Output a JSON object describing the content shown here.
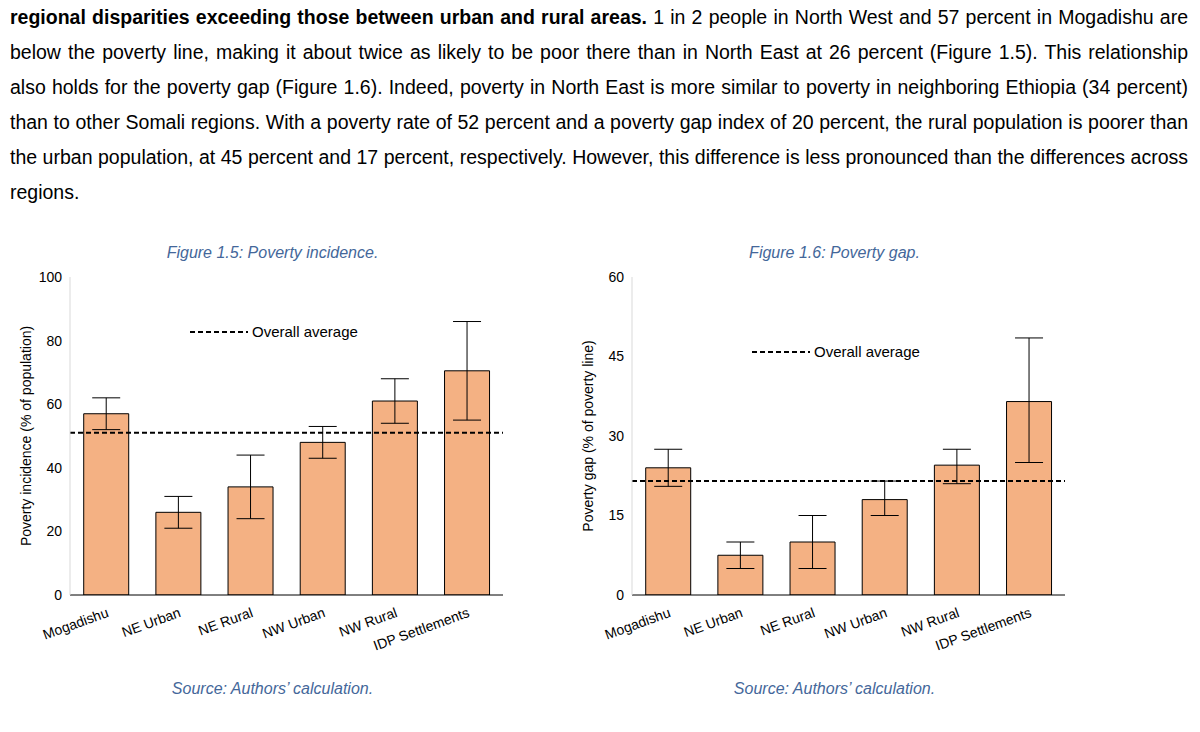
{
  "paragraph": {
    "bold": "regional disparities exceeding those between urban and rural areas.",
    "text": "1 in 2 people in North West and 57 percent in Mogadishu are below the poverty line, making it about twice as likely to be poor there than in North East at 26 percent (Figure 1.5). This relationship also holds for the poverty gap (Figure 1.6). Indeed, poverty in North East is more similar to poverty in neighboring Ethiopia (34 percent) than to other Somali regions. With a poverty rate of 52 percent and a poverty gap index of 20 percent, the rural population is poorer than the urban population, at 45 percent and 17 percent, respectively. However, this difference is less pronounced than the differences across regions."
  },
  "chart_data": [
    {
      "type": "bar",
      "title": "Figure 1.5: Poverty incidence.",
      "y_label": "Poverty incidence (% of population)",
      "source": "Source: Authors’ calculation.",
      "categories": [
        "Mogadishu",
        "NE Urban",
        "NE Rural",
        "NW Urban",
        "NW Rural",
        "IDP Settlements"
      ],
      "values": [
        57,
        26,
        34,
        48,
        61,
        70.5
      ],
      "error": [
        [
          5,
          5
        ],
        [
          5,
          5
        ],
        [
          10,
          10
        ],
        [
          5,
          5
        ],
        [
          7,
          7
        ],
        [
          15.5,
          15.5
        ]
      ],
      "reference_line": {
        "value": 51,
        "label": "Overall average",
        "line_style": "dashed"
      },
      "color": "#f4b183",
      "ylim": [
        0,
        100
      ],
      "yticks": [
        0,
        20,
        40,
        60,
        80,
        100
      ]
    },
    {
      "type": "bar",
      "title": "Figure 1.6: Poverty gap.",
      "y_label": "Poverty gap (% of poverty line)",
      "source": "Source: Authors’ calculation.",
      "categories": [
        "Mogadishu",
        "NE Urban",
        "NE Rural",
        "NW Urban",
        "NW Rural",
        "IDP Settlements"
      ],
      "values": [
        24,
        7.5,
        10,
        18,
        24.5,
        36.5
      ],
      "error": [
        [
          3.5,
          3.5
        ],
        [
          2.5,
          2.5
        ],
        [
          5,
          5
        ],
        [
          3,
          3.5
        ],
        [
          3.5,
          3
        ],
        [
          11.5,
          12
        ]
      ],
      "reference_line": {
        "value": 21.5,
        "label": "Overall average",
        "line_style": "dashed"
      },
      "color": "#f4b183",
      "ylim": [
        0,
        60
      ],
      "yticks": [
        0,
        15,
        30,
        45,
        60
      ]
    }
  ]
}
